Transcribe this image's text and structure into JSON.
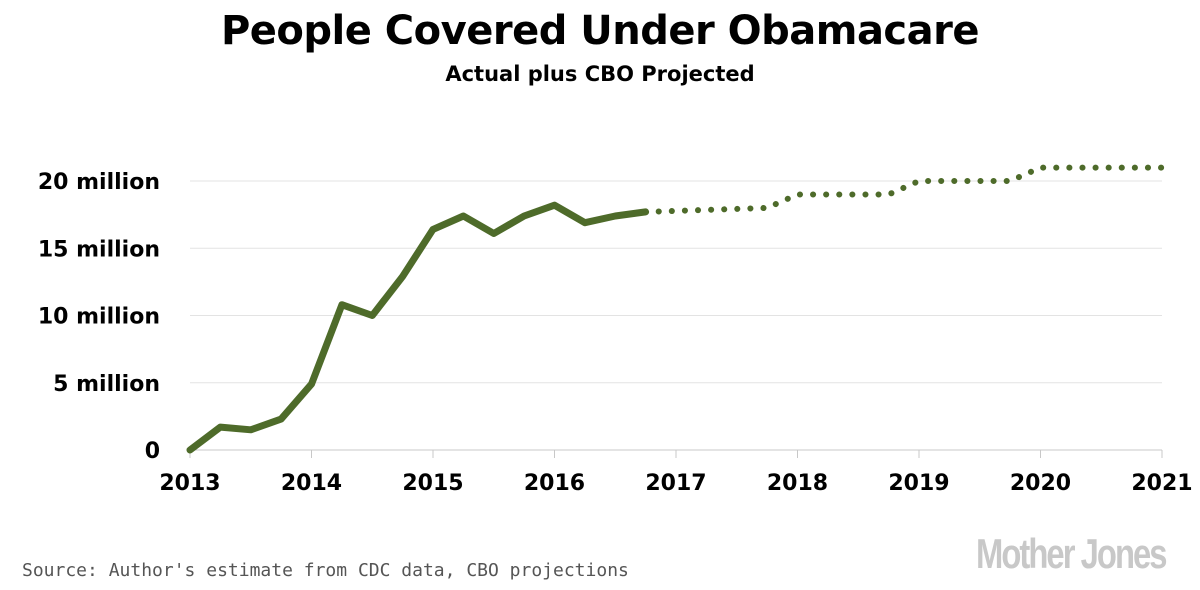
{
  "chart_data": {
    "type": "line",
    "title": "People Covered Under Obamacare",
    "subtitle": "Actual plus CBO Projected",
    "xlim": [
      2013,
      2021
    ],
    "ylim": [
      0,
      20000000
    ],
    "x_ticks": [
      "2013",
      "2014",
      "2015",
      "2016",
      "2017",
      "2018",
      "2019",
      "2020",
      "2021"
    ],
    "y_ticks": [
      {
        "value": 0,
        "label": "0"
      },
      {
        "value": 5000000,
        "label": "5 million"
      },
      {
        "value": 10000000,
        "label": "10 million"
      },
      {
        "value": 15000000,
        "label": "15 million"
      },
      {
        "value": 20000000,
        "label": "20 million"
      }
    ],
    "grid": true,
    "color": "#4e6b2a",
    "series": [
      {
        "style": "solid",
        "x": [
          2013.0,
          2013.25,
          2013.5,
          2013.75,
          2014.0,
          2014.25,
          2014.5,
          2014.75,
          2015.0,
          2015.25,
          2015.5,
          2015.75,
          2016.0,
          2016.25,
          2016.5,
          2016.75
        ],
        "y": [
          0,
          1700000,
          1500000,
          2300000,
          4900000,
          10800000,
          10000000,
          12900000,
          16400000,
          17400000,
          16100000,
          17400000,
          18200000,
          16900000,
          17400000,
          17700000
        ]
      },
      {
        "style": "dotted",
        "x": [
          2016.75,
          2017.75,
          2018.0,
          2018.75,
          2019.0,
          2019.75,
          2020.0,
          2021.0
        ],
        "y": [
          17700000,
          18000000,
          19000000,
          19000000,
          20000000,
          20000000,
          21000000,
          21000000
        ]
      }
    ]
  },
  "source": "Source: Author's estimate from CDC data, CBO projections",
  "logo": "Mother Jones"
}
